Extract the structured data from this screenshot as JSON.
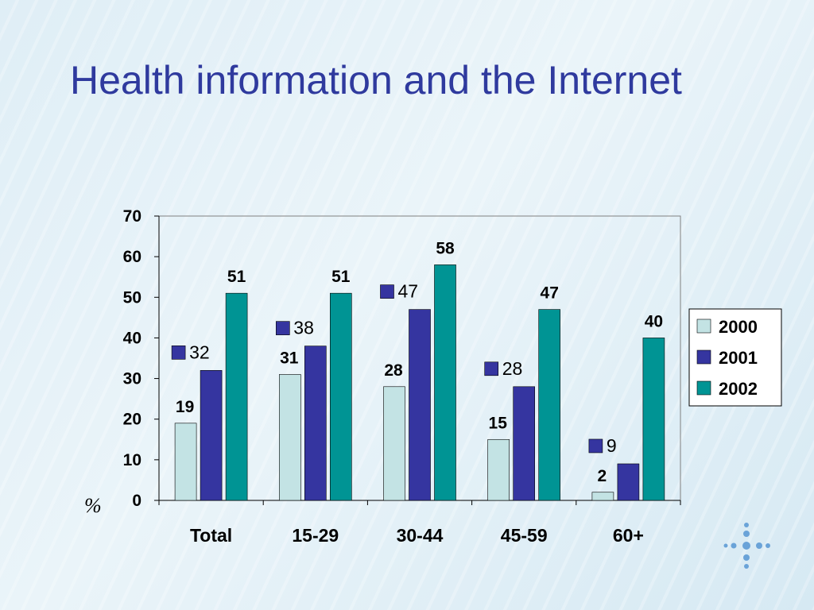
{
  "slide": {
    "title": "Health information and the Internet"
  },
  "chart_data": {
    "type": "bar",
    "categories": [
      "Total",
      "15-29",
      "30-44",
      "45-59",
      "60+"
    ],
    "series": [
      {
        "name": "2000",
        "values": [
          19,
          31,
          28,
          15,
          2
        ],
        "color": "#c3e3e4",
        "label_style": "bold"
      },
      {
        "name": "2001",
        "values": [
          32,
          38,
          47,
          28,
          9
        ],
        "color": "#3535a0",
        "label_style": "legend-key"
      },
      {
        "name": "2002",
        "values": [
          51,
          51,
          58,
          47,
          40
        ],
        "color": "#009494",
        "label_style": "bold"
      }
    ],
    "y_ticks": [
      "0",
      "10",
      "20",
      "30",
      "40",
      "50",
      "60",
      "70"
    ],
    "ylim": [
      0,
      70
    ],
    "unit_label": "%",
    "legend": "right",
    "grid": false
  },
  "colors": {
    "title": "#2f3a9e",
    "logo_dots": "#6aa3d8"
  },
  "icons": {
    "logo": "dot-cross-logo-icon"
  }
}
